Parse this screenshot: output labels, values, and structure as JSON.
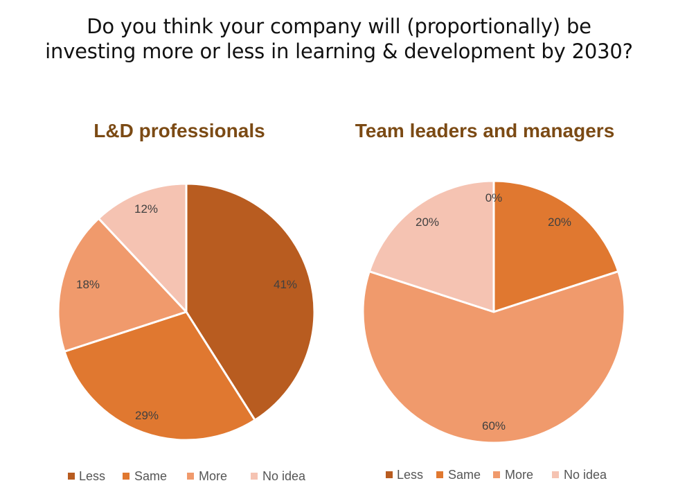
{
  "header": {
    "title_line1": "Do you think your company will (proportionally) be",
    "title_line2": "investing more or less in learning & development by 2030?"
  },
  "chart_data": [
    {
      "type": "pie",
      "title": "L&D professionals",
      "categories": [
        "Less",
        "Same",
        "More",
        "No idea"
      ],
      "values": [
        41,
        29,
        18,
        12
      ],
      "data_labels": [
        "41%",
        "29%",
        "18%",
        "12%"
      ],
      "colors": [
        "#b85c20",
        "#e07830",
        "#f09a6c",
        "#f5c3b2"
      ],
      "legend_position": "bottom"
    },
    {
      "type": "pie",
      "title": "Team leaders and managers",
      "categories": [
        "Less",
        "Same",
        "More",
        "No idea"
      ],
      "values": [
        0,
        20,
        60,
        20
      ],
      "data_labels": [
        "0%",
        "20%",
        "60%",
        "20%"
      ],
      "colors": [
        "#b85c20",
        "#e07830",
        "#f09a6c",
        "#f5c3b2"
      ],
      "legend_position": "bottom"
    }
  ]
}
